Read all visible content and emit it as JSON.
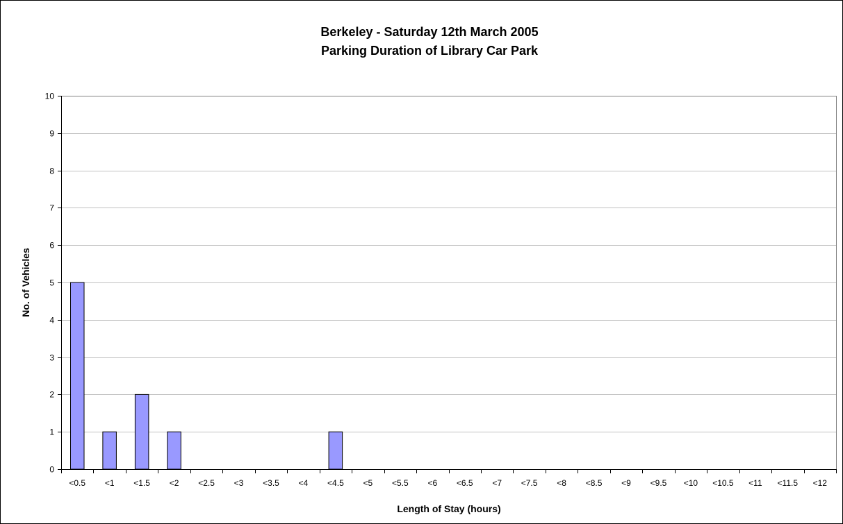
{
  "chart_data": {
    "type": "bar",
    "title": "Berkeley - Saturday 12th March 2005",
    "subtitle": "Parking Duration of Library Car Park",
    "xlabel": "Length of Stay (hours)",
    "ylabel": "No. of Vehicles",
    "categories": [
      "<0.5",
      "<1",
      "<1.5",
      "<2",
      "<2.5",
      "<3",
      "<3.5",
      "<4",
      "<4.5",
      "<5",
      "<5.5",
      "<6",
      "<6.5",
      "<7",
      "<7.5",
      "<8",
      "<8.5",
      "<9",
      "<9.5",
      "<10",
      "<10.5",
      "<11",
      "<11.5",
      "<12"
    ],
    "values": [
      5,
      1,
      2,
      1,
      0,
      0,
      0,
      0,
      1,
      0,
      0,
      0,
      0,
      0,
      0,
      0,
      0,
      0,
      0,
      0,
      0,
      0,
      0,
      0
    ],
    "ylim": [
      0,
      10
    ],
    "yticks": [
      "0",
      "1",
      "2",
      "3",
      "4",
      "5",
      "6",
      "7",
      "8",
      "9",
      "10"
    ],
    "grid": true,
    "legend": "none",
    "colors": {
      "bar_fill": "#9999ff",
      "bar_stroke": "#000000",
      "grid": "#c0c0c0"
    }
  }
}
